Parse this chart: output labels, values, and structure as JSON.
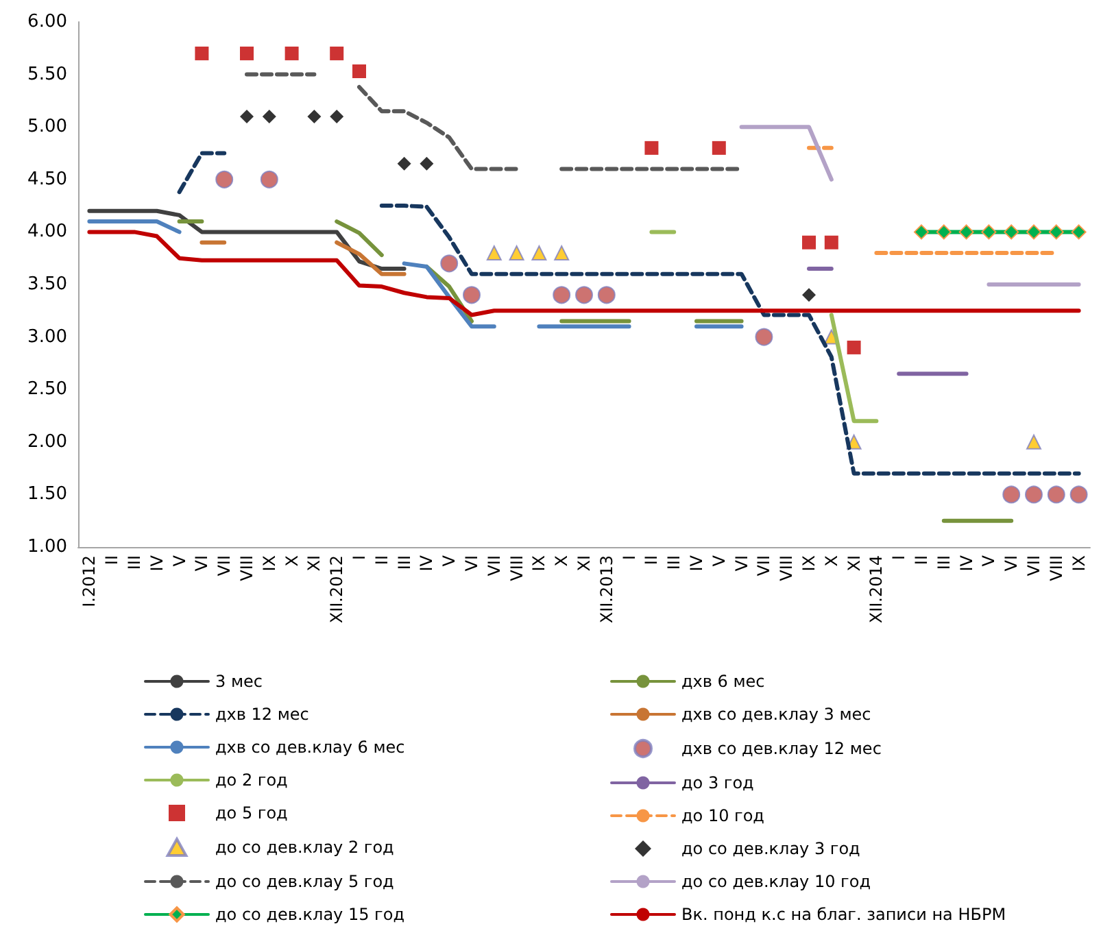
{
  "chart_data": {
    "type": "line",
    "categories": [
      "I.2012",
      "II",
      "III",
      "IV",
      "V",
      "VI",
      "VII",
      "VIII",
      "IX",
      "X",
      "XI",
      "XII.2012",
      "I",
      "II",
      "III",
      "IV",
      "V",
      "VI",
      "VII",
      "VIII",
      "IX",
      "X",
      "XI",
      "XII.2013",
      "I",
      "II",
      "III",
      "IV",
      "V",
      "VI",
      "VII",
      "VIII",
      "IX",
      "X",
      "XI",
      "XII.2014",
      "I",
      "II",
      "III",
      "IV",
      "V",
      "VI",
      "VII",
      "VIII",
      "IX"
    ],
    "ylim": [
      1,
      6
    ],
    "yticks": [
      {
        "value": 1,
        "label": "1.00"
      },
      {
        "value": 1.5,
        "label": "1.50"
      },
      {
        "value": 2,
        "label": "2.00"
      },
      {
        "value": 2.5,
        "label": "2.50"
      },
      {
        "value": 3,
        "label": "3.00"
      },
      {
        "value": 3.5,
        "label": "3.50"
      },
      {
        "value": 4,
        "label": "4.00"
      },
      {
        "value": 4.5,
        "label": "4.50"
      },
      {
        "value": 5,
        "label": "5.00"
      },
      {
        "value": 5.5,
        "label": "5.50"
      },
      {
        "value": 6,
        "label": "6.00"
      }
    ],
    "grid": false,
    "legend": "bottom",
    "series": [
      {
        "name": "3 мес",
        "color": "#404040",
        "line_style": "solid",
        "values": [
          4.2,
          4.2,
          4.2,
          4.2,
          4.16,
          4,
          4,
          4,
          4,
          4,
          4,
          4,
          3.72,
          3.65,
          3.65,
          null,
          null,
          null,
          null,
          null,
          null,
          null,
          null,
          null,
          null,
          null,
          null,
          null,
          null,
          null,
          null,
          null,
          null,
          null,
          null,
          null,
          null,
          null,
          null,
          null,
          null,
          null,
          null,
          null,
          null
        ]
      },
      {
        "name": "дхв 6 мес",
        "color": "#77933c",
        "line_style": "solid",
        "values": [
          null,
          null,
          null,
          null,
          4.1,
          4.1,
          null,
          null,
          null,
          null,
          null,
          4.1,
          3.99,
          3.78,
          null,
          3.67,
          3.48,
          3.15,
          null,
          null,
          null,
          3.15,
          3.15,
          3.15,
          3.15,
          null,
          null,
          3.15,
          3.15,
          3.15,
          null,
          null,
          null,
          null,
          null,
          null,
          null,
          null,
          1.25,
          1.25,
          1.25,
          1.25,
          null,
          null,
          null
        ]
      },
      {
        "name": "дхв 12 мес",
        "color": "#17375e",
        "line_style": "dashed",
        "values": [
          null,
          null,
          null,
          null,
          4.38,
          4.75,
          4.75,
          null,
          null,
          null,
          null,
          null,
          null,
          4.25,
          4.25,
          4.24,
          3.95,
          3.6,
          3.6,
          3.6,
          3.6,
          3.6,
          3.6,
          3.6,
          3.6,
          3.6,
          3.6,
          3.6,
          3.6,
          3.6,
          3.21,
          3.21,
          3.21,
          2.81,
          1.7,
          1.7,
          1.7,
          1.7,
          1.7,
          1.7,
          1.7,
          1.7,
          1.7,
          1.7,
          1.7
        ]
      },
      {
        "name": "дхв со дев.клау 3 мес",
        "color": "#c87533",
        "line_style": "solid",
        "values": [
          null,
          null,
          null,
          null,
          null,
          3.9,
          3.9,
          null,
          null,
          null,
          null,
          3.9,
          3.79,
          3.6,
          3.6,
          null,
          null,
          null,
          null,
          null,
          null,
          null,
          null,
          null,
          null,
          null,
          null,
          null,
          null,
          null,
          null,
          null,
          null,
          null,
          null,
          null,
          null,
          null,
          null,
          null,
          null,
          null,
          null,
          null,
          null
        ]
      },
      {
        "name": "дхв со дев.клау 6 мес",
        "color": "#4f81bd",
        "line_style": "solid",
        "values": [
          4.1,
          4.1,
          4.1,
          4.1,
          4,
          null,
          null,
          null,
          null,
          null,
          null,
          null,
          null,
          null,
          3.7,
          3.67,
          3.38,
          3.1,
          3.1,
          null,
          3.1,
          3.1,
          3.1,
          3.1,
          3.1,
          null,
          null,
          3.1,
          3.1,
          3.1,
          null,
          null,
          null,
          null,
          null,
          null,
          null,
          null,
          null,
          null,
          null,
          null,
          null,
          null,
          null
        ]
      },
      {
        "name": "дхв со дев.клау 12 мес",
        "type": "scatter",
        "marker": "circle",
        "color": "#c0504d",
        "values": [
          null,
          null,
          null,
          null,
          null,
          null,
          4.5,
          null,
          4.5,
          null,
          null,
          null,
          null,
          null,
          null,
          null,
          3.7,
          3.4,
          null,
          null,
          null,
          3.4,
          3.4,
          3.4,
          null,
          null,
          null,
          null,
          null,
          null,
          3,
          null,
          null,
          null,
          null,
          null,
          null,
          null,
          null,
          null,
          null,
          1.5,
          1.5,
          1.5,
          1.5
        ]
      },
      {
        "name": "до 2 год",
        "color": "#9bbb59",
        "line_style": "solid",
        "values": [
          null,
          null,
          null,
          null,
          null,
          null,
          null,
          null,
          null,
          null,
          null,
          null,
          null,
          null,
          null,
          null,
          null,
          null,
          null,
          null,
          null,
          null,
          null,
          null,
          null,
          4,
          4,
          null,
          null,
          null,
          null,
          null,
          null,
          3.21,
          2.2,
          2.2,
          null,
          null,
          null,
          null,
          null,
          null,
          null,
          null,
          null
        ]
      },
      {
        "name": "до 3 год",
        "color": "#8064a2",
        "line_style": "solid",
        "values": [
          null,
          null,
          null,
          null,
          null,
          null,
          null,
          null,
          null,
          null,
          null,
          null,
          null,
          null,
          null,
          null,
          null,
          null,
          null,
          null,
          null,
          null,
          null,
          null,
          null,
          null,
          null,
          null,
          null,
          null,
          null,
          null,
          3.65,
          3.65,
          null,
          null,
          2.65,
          2.65,
          2.65,
          2.65,
          null,
          null,
          null,
          null,
          null
        ]
      },
      {
        "name": "до 5 год",
        "type": "scatter",
        "marker": "square",
        "color": "#c00000",
        "values": [
          null,
          null,
          null,
          null,
          null,
          5.7,
          null,
          5.7,
          null,
          5.7,
          null,
          5.7,
          5.53,
          null,
          null,
          null,
          null,
          null,
          null,
          null,
          null,
          null,
          null,
          null,
          null,
          4.8,
          null,
          null,
          4.8,
          null,
          null,
          null,
          3.9,
          3.9,
          2.9,
          null,
          null,
          null,
          null,
          null,
          null,
          null,
          null,
          null,
          null
        ]
      },
      {
        "name": "до 10 год",
        "color": "#f79646",
        "line_style": "dashed",
        "values": [
          null,
          null,
          null,
          null,
          null,
          null,
          null,
          null,
          null,
          null,
          null,
          null,
          null,
          null,
          null,
          null,
          null,
          null,
          null,
          null,
          null,
          null,
          null,
          null,
          null,
          null,
          null,
          null,
          null,
          null,
          null,
          null,
          4.8,
          4.8,
          null,
          3.8,
          3.8,
          3.8,
          3.8,
          3.8,
          3.8,
          3.8,
          3.8,
          3.8,
          null
        ]
      },
      {
        "name": "до со дев.клау 2 год",
        "type": "scatter",
        "marker": "triangle",
        "color": "#ffc000",
        "values": [
          null,
          null,
          null,
          null,
          null,
          null,
          null,
          null,
          null,
          null,
          null,
          null,
          null,
          null,
          null,
          null,
          null,
          null,
          3.8,
          3.8,
          3.8,
          3.8,
          null,
          null,
          null,
          null,
          null,
          null,
          null,
          null,
          null,
          null,
          null,
          3,
          2,
          null,
          null,
          null,
          null,
          null,
          null,
          null,
          2,
          null,
          null
        ]
      },
      {
        "name": "до со дев.клау 3 год",
        "type": "scatter",
        "marker": "diamond",
        "color": "#000000",
        "values": [
          null,
          null,
          null,
          null,
          null,
          null,
          null,
          5.1,
          5.1,
          null,
          5.1,
          5.1,
          null,
          null,
          4.65,
          4.65,
          null,
          null,
          null,
          null,
          null,
          null,
          null,
          null,
          null,
          null,
          null,
          null,
          null,
          null,
          null,
          null,
          3.4,
          null,
          null,
          null,
          null,
          null,
          null,
          null,
          null,
          null,
          null,
          null,
          null
        ]
      },
      {
        "name": "до со дев.клау 5 год",
        "color": "#595959",
        "line_style": "dashed",
        "values": [
          null,
          null,
          null,
          null,
          null,
          null,
          null,
          5.5,
          5.5,
          5.5,
          5.5,
          null,
          5.38,
          5.15,
          5.15,
          5.04,
          4.9,
          4.6,
          4.6,
          4.6,
          null,
          4.6,
          4.6,
          4.6,
          4.6,
          4.6,
          4.6,
          4.6,
          4.6,
          4.6,
          null,
          null,
          null,
          null,
          null,
          null,
          null,
          null,
          null,
          null,
          null,
          null,
          null,
          null,
          null
        ]
      },
      {
        "name": "до со дев.клау 10 год",
        "color": "#b3a2c7",
        "line_style": "solid",
        "values": [
          null,
          null,
          null,
          null,
          null,
          null,
          null,
          null,
          null,
          null,
          null,
          null,
          null,
          null,
          null,
          null,
          null,
          null,
          null,
          null,
          null,
          null,
          null,
          null,
          null,
          null,
          null,
          null,
          null,
          5,
          5,
          5,
          5,
          4.5,
          null,
          null,
          null,
          null,
          null,
          null,
          3.5,
          3.5,
          3.5,
          3.5,
          3.5
        ]
      },
      {
        "name": "до со дев.клау 15 год",
        "marker": "diamond",
        "color": "#00b050",
        "line_style": "solid",
        "values": [
          null,
          null,
          null,
          null,
          null,
          null,
          null,
          null,
          null,
          null,
          null,
          null,
          null,
          null,
          null,
          null,
          null,
          null,
          null,
          null,
          null,
          null,
          null,
          null,
          null,
          null,
          null,
          null,
          null,
          null,
          null,
          null,
          null,
          null,
          null,
          null,
          null,
          4,
          4,
          4,
          4,
          4,
          4,
          4,
          4
        ]
      },
      {
        "name": "Вк. понд к.с на благ. записи на НБРМ",
        "color": "#c00000",
        "line_style": "solid",
        "values": [
          4,
          4,
          4,
          3.96,
          3.75,
          3.73,
          3.73,
          3.73,
          3.73,
          3.73,
          3.73,
          3.73,
          3.49,
          3.48,
          3.42,
          3.38,
          3.37,
          3.21,
          3.25,
          3.25,
          3.25,
          3.25,
          3.25,
          3.25,
          3.25,
          3.25,
          3.25,
          3.25,
          3.25,
          3.25,
          3.25,
          3.25,
          3.25,
          3.25,
          3.25,
          3.25,
          3.25,
          3.25,
          3.25,
          3.25,
          3.25,
          3.25,
          3.25,
          3.25,
          3.25
        ]
      }
    ]
  }
}
